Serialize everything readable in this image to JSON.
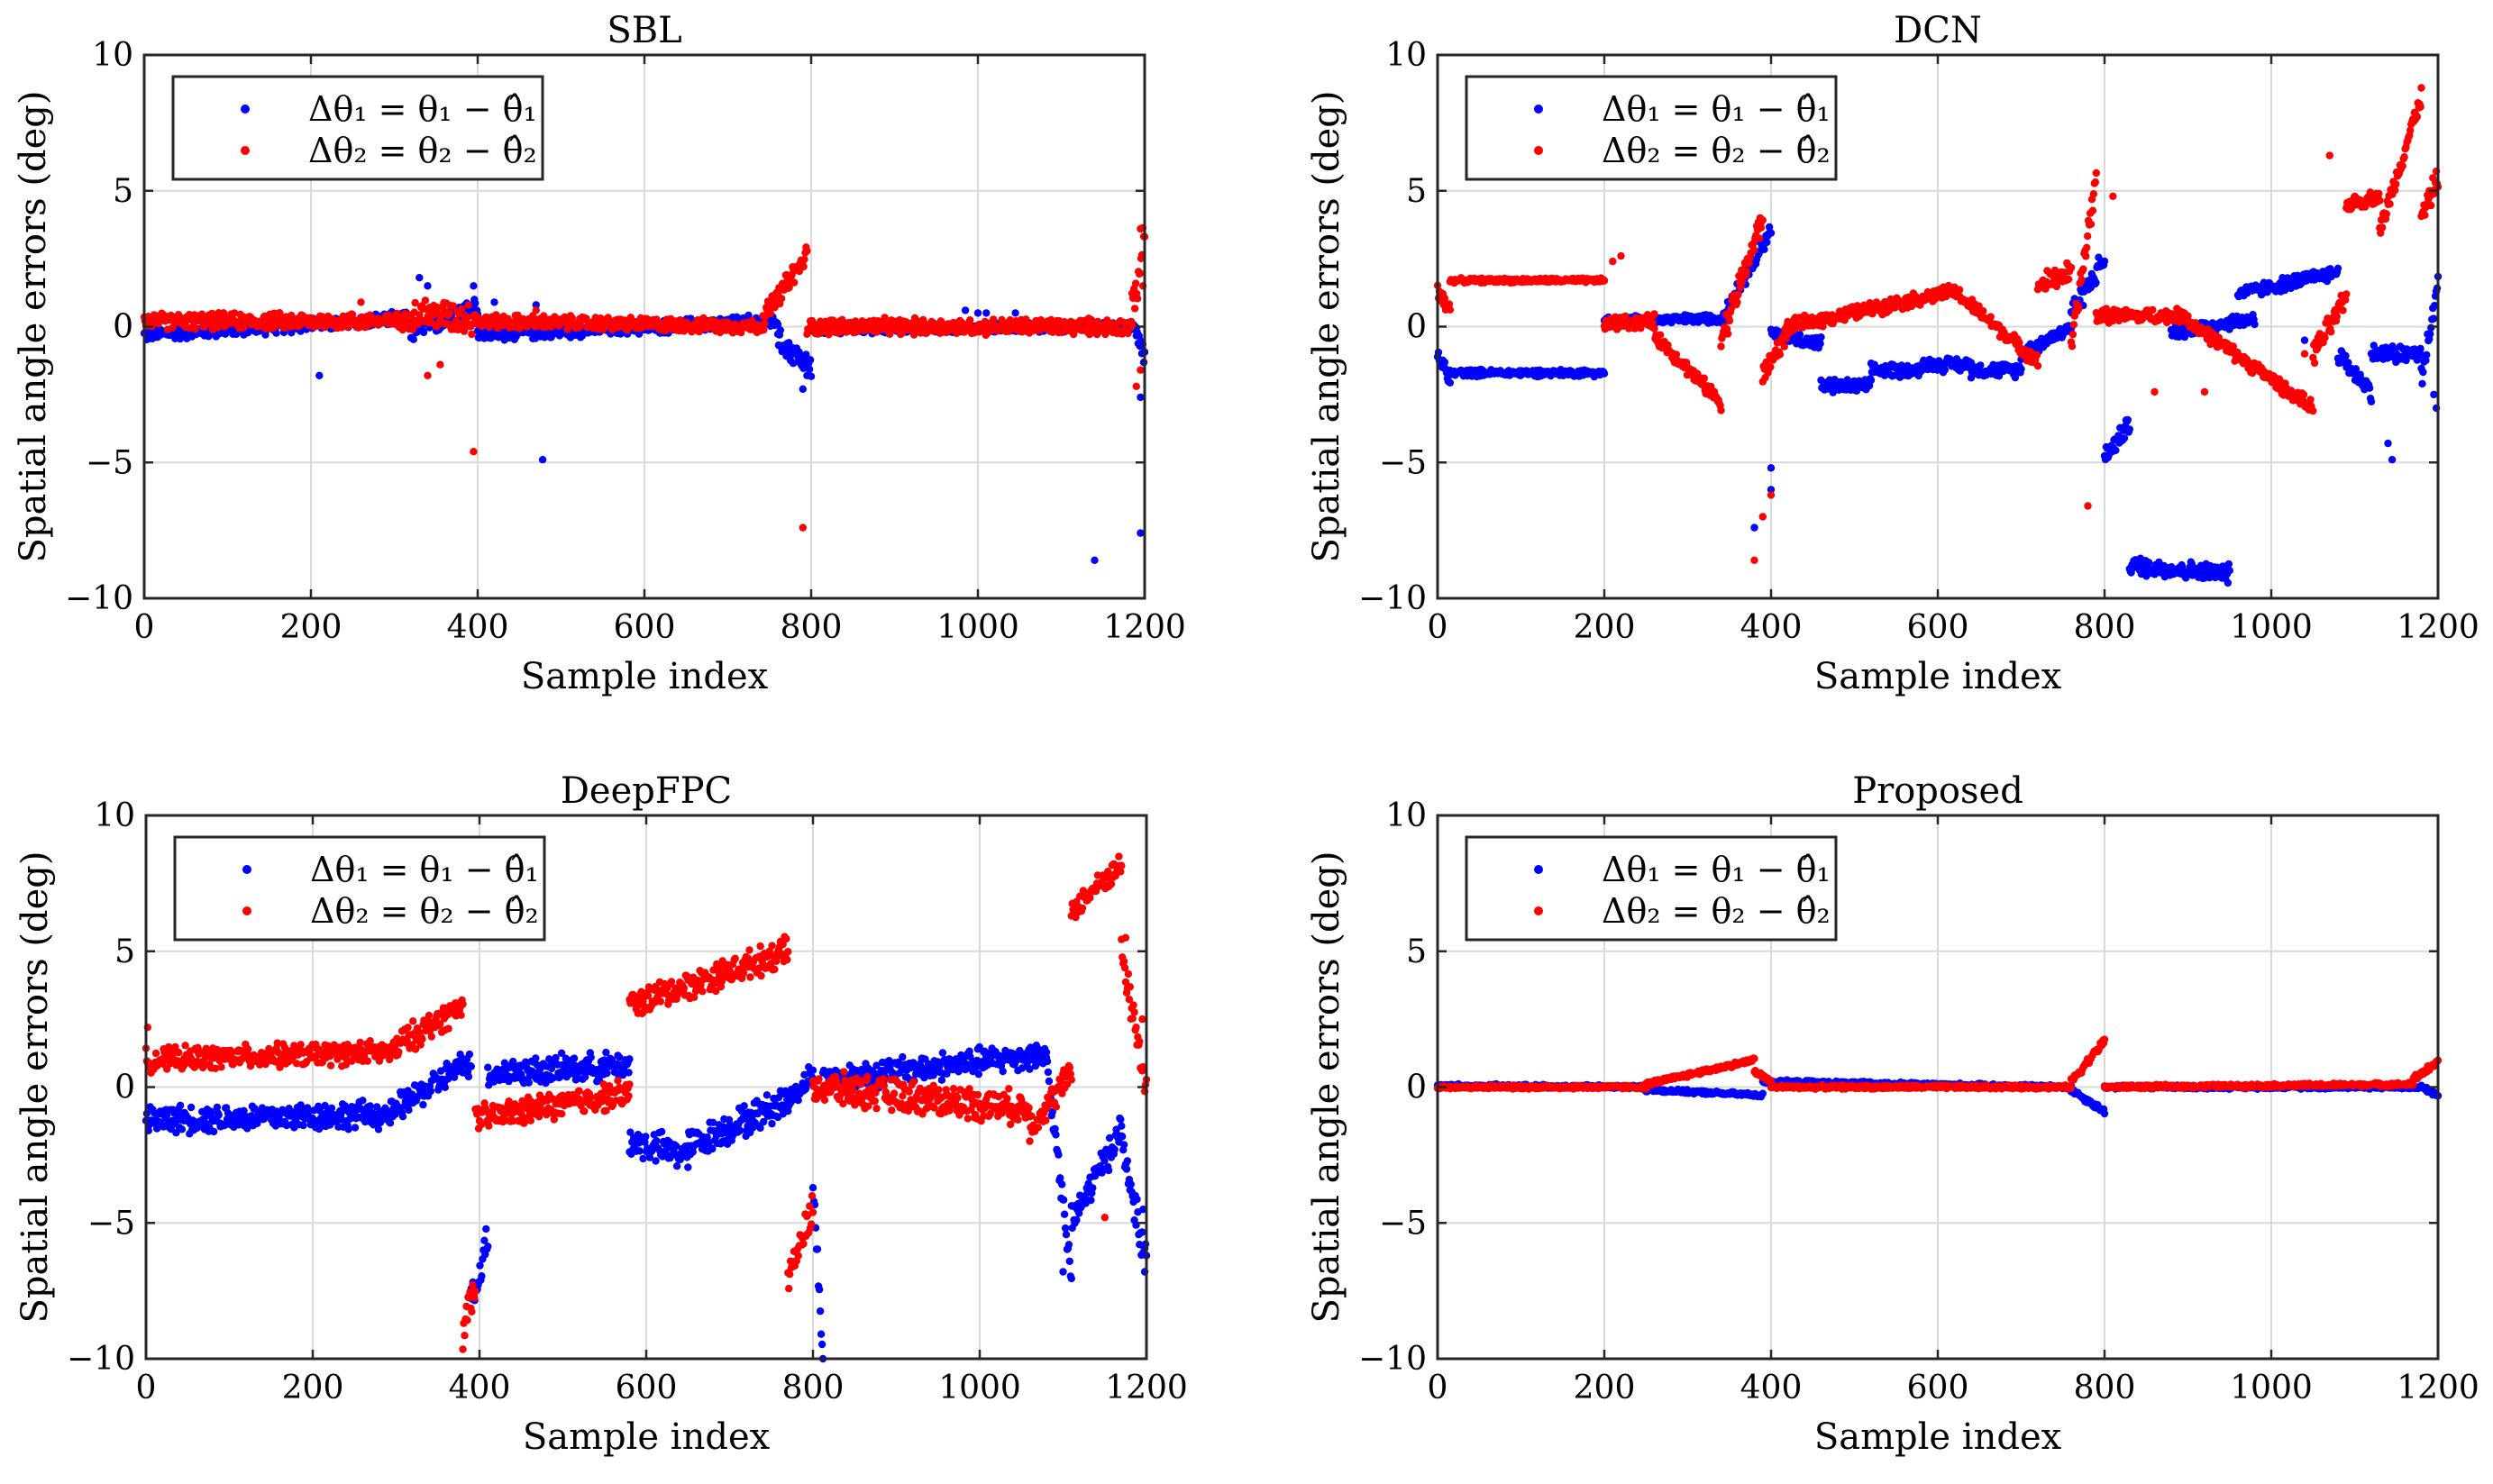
{
  "figure": {
    "ylabel": "Spatial angle errors (deg)",
    "xlabel": "Sample index",
    "legend_1_text": "Δθ₁ = θ₁ − θ̂₁",
    "legend_2_text": "Δθ₂ = θ₂ − θ̂₂"
  },
  "colors": {
    "series1": "#0000ff",
    "series2": "#ff0000"
  },
  "chart_data": [
    {
      "type": "scatter",
      "title": "SBL",
      "xlabel": "Sample index",
      "ylabel": "Spatial angle errors (deg)",
      "xlim": [
        0,
        1200
      ],
      "ylim": [
        -10,
        10
      ],
      "xticks": [
        "0",
        "200",
        "400",
        "600",
        "800",
        "1000",
        "1200"
      ],
      "yticks": [
        "10",
        "5",
        "0",
        "−5",
        "−10"
      ],
      "grid": true,
      "legend_position": "top-left",
      "series": [
        {
          "name": "Δθ₁ = θ₁ − θ̂₁",
          "color": "blue",
          "segments": [
            [
              0,
              320,
              -0.3,
              0.3,
              0.3
            ],
            [
              320,
              400,
              -0.2,
              0.8,
              0.5
            ],
            [
              400,
              760,
              -0.3,
              0.2,
              0.3
            ],
            [
              760,
              800,
              -0.5,
              -1.5,
              0.5
            ],
            [
              800,
              1190,
              -0.1,
              0.0,
              0.2
            ],
            [
              1190,
              1200,
              0.0,
              -1.0,
              0.6
            ]
          ],
          "outliers": [
            [
              210,
              -1.8
            ],
            [
              330,
              1.8
            ],
            [
              340,
              1.5
            ],
            [
              395,
              1.5
            ],
            [
              420,
              0.9
            ],
            [
              470,
              0.8
            ],
            [
              478,
              -4.9
            ],
            [
              790,
              -2.3
            ],
            [
              795,
              -1.8
            ],
            [
              985,
              0.6
            ],
            [
              1000,
              0.5
            ],
            [
              1010,
              0.5
            ],
            [
              1045,
              0.5
            ],
            [
              1140,
              -8.6
            ],
            [
              1195,
              -7.6
            ],
            [
              1195,
              -2.6
            ]
          ]
        },
        {
          "name": "Δθ₂ = θ₂ − θ̂₂",
          "color": "red",
          "segments": [
            [
              0,
              320,
              0.2,
              0.2,
              0.35
            ],
            [
              320,
              400,
              0.5,
              0.3,
              0.7
            ],
            [
              400,
              740,
              0.2,
              0.0,
              0.3
            ],
            [
              740,
              795,
              0.2,
              2.6,
              0.5
            ],
            [
              795,
              1185,
              0.0,
              0.0,
              0.35
            ],
            [
              1185,
              1200,
              0.5,
              3.3,
              0.8
            ]
          ],
          "outliers": [
            [
              260,
              0.9
            ],
            [
              340,
              -1.8
            ],
            [
              355,
              -1.4
            ],
            [
              395,
              -4.6
            ],
            [
              470,
              0.6
            ],
            [
              790,
              -7.4
            ],
            [
              1190,
              -2.2
            ],
            [
              1195,
              -1.6
            ],
            [
              1195,
              3.6
            ],
            [
              1198,
              1.5
            ]
          ]
        }
      ]
    },
    {
      "type": "scatter",
      "title": "DCN",
      "xlabel": "Sample index",
      "ylabel": "Spatial angle errors (deg)",
      "xlim": [
        0,
        1200
      ],
      "ylim": [
        -10,
        10
      ],
      "xticks": [
        "0",
        "200",
        "400",
        "600",
        "800",
        "1000",
        "1200"
      ],
      "yticks": [
        "10",
        "5",
        "0",
        "−5",
        "−10"
      ],
      "grid": true,
      "legend_position": "top-left",
      "series": [
        {
          "name": "Δθ₁ = θ₁ − θ̂₁",
          "color": "blue",
          "segments": [
            [
              0,
              15,
              -1.0,
              -2.0,
              0.4
            ],
            [
              15,
              200,
              -1.7,
              -1.7,
              0.15
            ],
            [
              200,
              340,
              0.2,
              0.3,
              0.2
            ],
            [
              340,
              400,
              0.3,
              3.6,
              0.4
            ],
            [
              400,
              460,
              -0.3,
              -0.6,
              0.3
            ],
            [
              460,
              520,
              -2.2,
              -2.2,
              0.3
            ],
            [
              520,
              580,
              -1.6,
              -1.6,
              0.3
            ],
            [
              580,
              640,
              -1.4,
              -1.4,
              0.3
            ],
            [
              640,
              700,
              -1.6,
              -1.6,
              0.3
            ],
            [
              700,
              760,
              -1.0,
              0.0,
              0.3
            ],
            [
              760,
              800,
              0.5,
              2.5,
              0.5
            ],
            [
              800,
              830,
              -4.8,
              -3.6,
              0.4
            ],
            [
              830,
              950,
              -8.8,
              -9.1,
              0.4
            ],
            [
              880,
              980,
              -0.2,
              0.3,
              0.3
            ],
            [
              960,
              1080,
              1.2,
              2.0,
              0.3
            ],
            [
              1080,
              1120,
              -1.0,
              -2.4,
              0.4
            ],
            [
              1120,
              1180,
              -1.0,
              -1.0,
              0.4
            ],
            [
              1180,
              1200,
              -2.0,
              1.5,
              0.6
            ]
          ],
          "outliers": [
            [
              380,
              -7.4
            ],
            [
              400,
              -6.0
            ],
            [
              400,
              -5.2
            ],
            [
              1040,
              -0.5
            ],
            [
              1140,
              -4.3
            ],
            [
              1145,
              -4.9
            ],
            [
              1195,
              -2.5
            ],
            [
              1198,
              -3.0
            ]
          ]
        },
        {
          "name": "Δθ₂ = θ₂ − θ̂₂",
          "color": "red",
          "segments": [
            [
              0,
              15,
              1.5,
              0.5,
              0.5
            ],
            [
              15,
              200,
              1.7,
              1.7,
              0.1
            ],
            [
              200,
              260,
              0.1,
              0.2,
              0.3
            ],
            [
              260,
              340,
              -0.3,
              -2.8,
              0.3
            ],
            [
              340,
              390,
              -0.5,
              4.0,
              0.6
            ],
            [
              390,
              420,
              -1.8,
              -0.2,
              0.4
            ],
            [
              420,
              620,
              0.0,
              1.3,
              0.3
            ],
            [
              620,
              720,
              1.3,
              -1.3,
              0.3
            ],
            [
              720,
              760,
              1.5,
              2.0,
              0.5
            ],
            [
              760,
              790,
              -0.8,
              5.5,
              0.6
            ],
            [
              790,
              900,
              0.4,
              0.4,
              0.3
            ],
            [
              900,
              1050,
              0.2,
              -3.0,
              0.3
            ],
            [
              1050,
              1090,
              -1.0,
              1.0,
              0.5
            ],
            [
              1090,
              1130,
              4.5,
              4.8,
              0.3
            ],
            [
              1130,
              1180,
              3.5,
              8.5,
              0.4
            ],
            [
              1180,
              1200,
              4.0,
              5.5,
              0.5
            ]
          ],
          "outliers": [
            [
              210,
              2.4
            ],
            [
              220,
              2.6
            ],
            [
              380,
              -8.6
            ],
            [
              390,
              -7.0
            ],
            [
              400,
              -6.2
            ],
            [
              780,
              -6.6
            ],
            [
              810,
              4.8
            ],
            [
              860,
              -2.4
            ],
            [
              920,
              -2.4
            ],
            [
              1040,
              -1.0
            ],
            [
              1070,
              6.3
            ]
          ]
        }
      ]
    },
    {
      "type": "scatter",
      "title": "DeepFPC",
      "xlabel": "Sample index",
      "ylabel": "Spatial angle errors (deg)",
      "xlim": [
        0,
        1200
      ],
      "ylim": [
        -10,
        10
      ],
      "xticks": [
        "0",
        "200",
        "400",
        "600",
        "800",
        "1000",
        "1200"
      ],
      "yticks": [
        "10",
        "5",
        "0",
        "−5",
        "−10"
      ],
      "grid": true,
      "legend_position": "top-left",
      "series": [
        {
          "name": "Δθ₁ = θ₁ − θ̂₁",
          "color": "blue",
          "segments": [
            [
              0,
              300,
              -1.2,
              -1.0,
              0.6
            ],
            [
              300,
              390,
              -0.8,
              1.0,
              0.6
            ],
            [
              390,
              410,
              -8.0,
              -5.5,
              0.8
            ],
            [
              410,
              580,
              0.5,
              0.8,
              0.6
            ],
            [
              580,
              650,
              -2.0,
              -2.5,
              0.7
            ],
            [
              650,
              770,
              -2.2,
              -0.5,
              0.7
            ],
            [
              770,
              800,
              -0.5,
              0.5,
              0.5
            ],
            [
              800,
              812,
              -3.5,
              -9.9,
              0.6
            ],
            [
              812,
              1080,
              0.3,
              1.2,
              0.6
            ],
            [
              1080,
              1110,
              1.0,
              -7.0,
              0.6
            ],
            [
              1110,
              1170,
              -5.0,
              -1.5,
              0.7
            ],
            [
              1170,
              1200,
              -2.0,
              -6.5,
              0.8
            ]
          ],
          "outliers": [
            [
              1100,
              -6.8
            ],
            [
              1198,
              -6.8
            ],
            [
              1196,
              -4.5
            ]
          ]
        },
        {
          "name": "Δθ₂ = θ₂ − θ̂₂",
          "color": "red",
          "segments": [
            [
              0,
              300,
              1.0,
              1.3,
              0.5
            ],
            [
              300,
              380,
              1.5,
              3.0,
              0.6
            ],
            [
              380,
              395,
              -9.0,
              -7.0,
              0.8
            ],
            [
              395,
              580,
              -1.2,
              -0.2,
              0.6
            ],
            [
              580,
              770,
              3.0,
              5.0,
              0.6
            ],
            [
              770,
              800,
              -7.0,
              -4.5,
              0.7
            ],
            [
              800,
              1060,
              0.0,
              -0.8,
              0.7
            ],
            [
              1060,
              1110,
              -1.5,
              0.5,
              0.6
            ],
            [
              1110,
              1170,
              6.5,
              8.2,
              0.5
            ],
            [
              1170,
              1200,
              5.0,
              0.0,
              0.8
            ]
          ],
          "outliers": [
            [
              2,
              2.2
            ],
            [
              1150,
              -4.8
            ],
            [
              1175,
              5.5
            ],
            [
              1195,
              2.5
            ]
          ]
        }
      ]
    },
    {
      "type": "scatter",
      "title": "Proposed",
      "xlabel": "Sample index",
      "ylabel": "Spatial angle errors (deg)",
      "xlim": [
        0,
        1200
      ],
      "ylim": [
        -10,
        10
      ],
      "xticks": [
        "0",
        "200",
        "400",
        "600",
        "800",
        "1000",
        "1200"
      ],
      "yticks": [
        "10",
        "5",
        "0",
        "−5",
        "−10"
      ],
      "grid": true,
      "legend_position": "top-left",
      "series": [
        {
          "name": "Δθ₁ = θ₁ − θ̂₁",
          "color": "blue",
          "segments": [
            [
              0,
              250,
              0.05,
              0.0,
              0.08
            ],
            [
              250,
              390,
              -0.1,
              -0.3,
              0.08
            ],
            [
              390,
              760,
              0.2,
              0.0,
              0.08
            ],
            [
              760,
              800,
              -0.1,
              -0.9,
              0.12
            ],
            [
              800,
              1180,
              0.0,
              0.0,
              0.08
            ],
            [
              1180,
              1200,
              0.0,
              -0.3,
              0.1
            ]
          ],
          "outliers": []
        },
        {
          "name": "Δθ₂ = θ₂ − θ̂₂",
          "color": "red",
          "segments": [
            [
              0,
              250,
              0.0,
              0.0,
              0.08
            ],
            [
              250,
              380,
              0.1,
              1.0,
              0.1
            ],
            [
              380,
              400,
              0.6,
              0.2,
              0.1
            ],
            [
              400,
              760,
              0.0,
              0.0,
              0.08
            ],
            [
              760,
              800,
              0.2,
              1.7,
              0.15
            ],
            [
              800,
              1170,
              0.0,
              0.1,
              0.08
            ],
            [
              1170,
              1200,
              0.3,
              0.9,
              0.15
            ]
          ],
          "outliers": []
        }
      ]
    }
  ]
}
